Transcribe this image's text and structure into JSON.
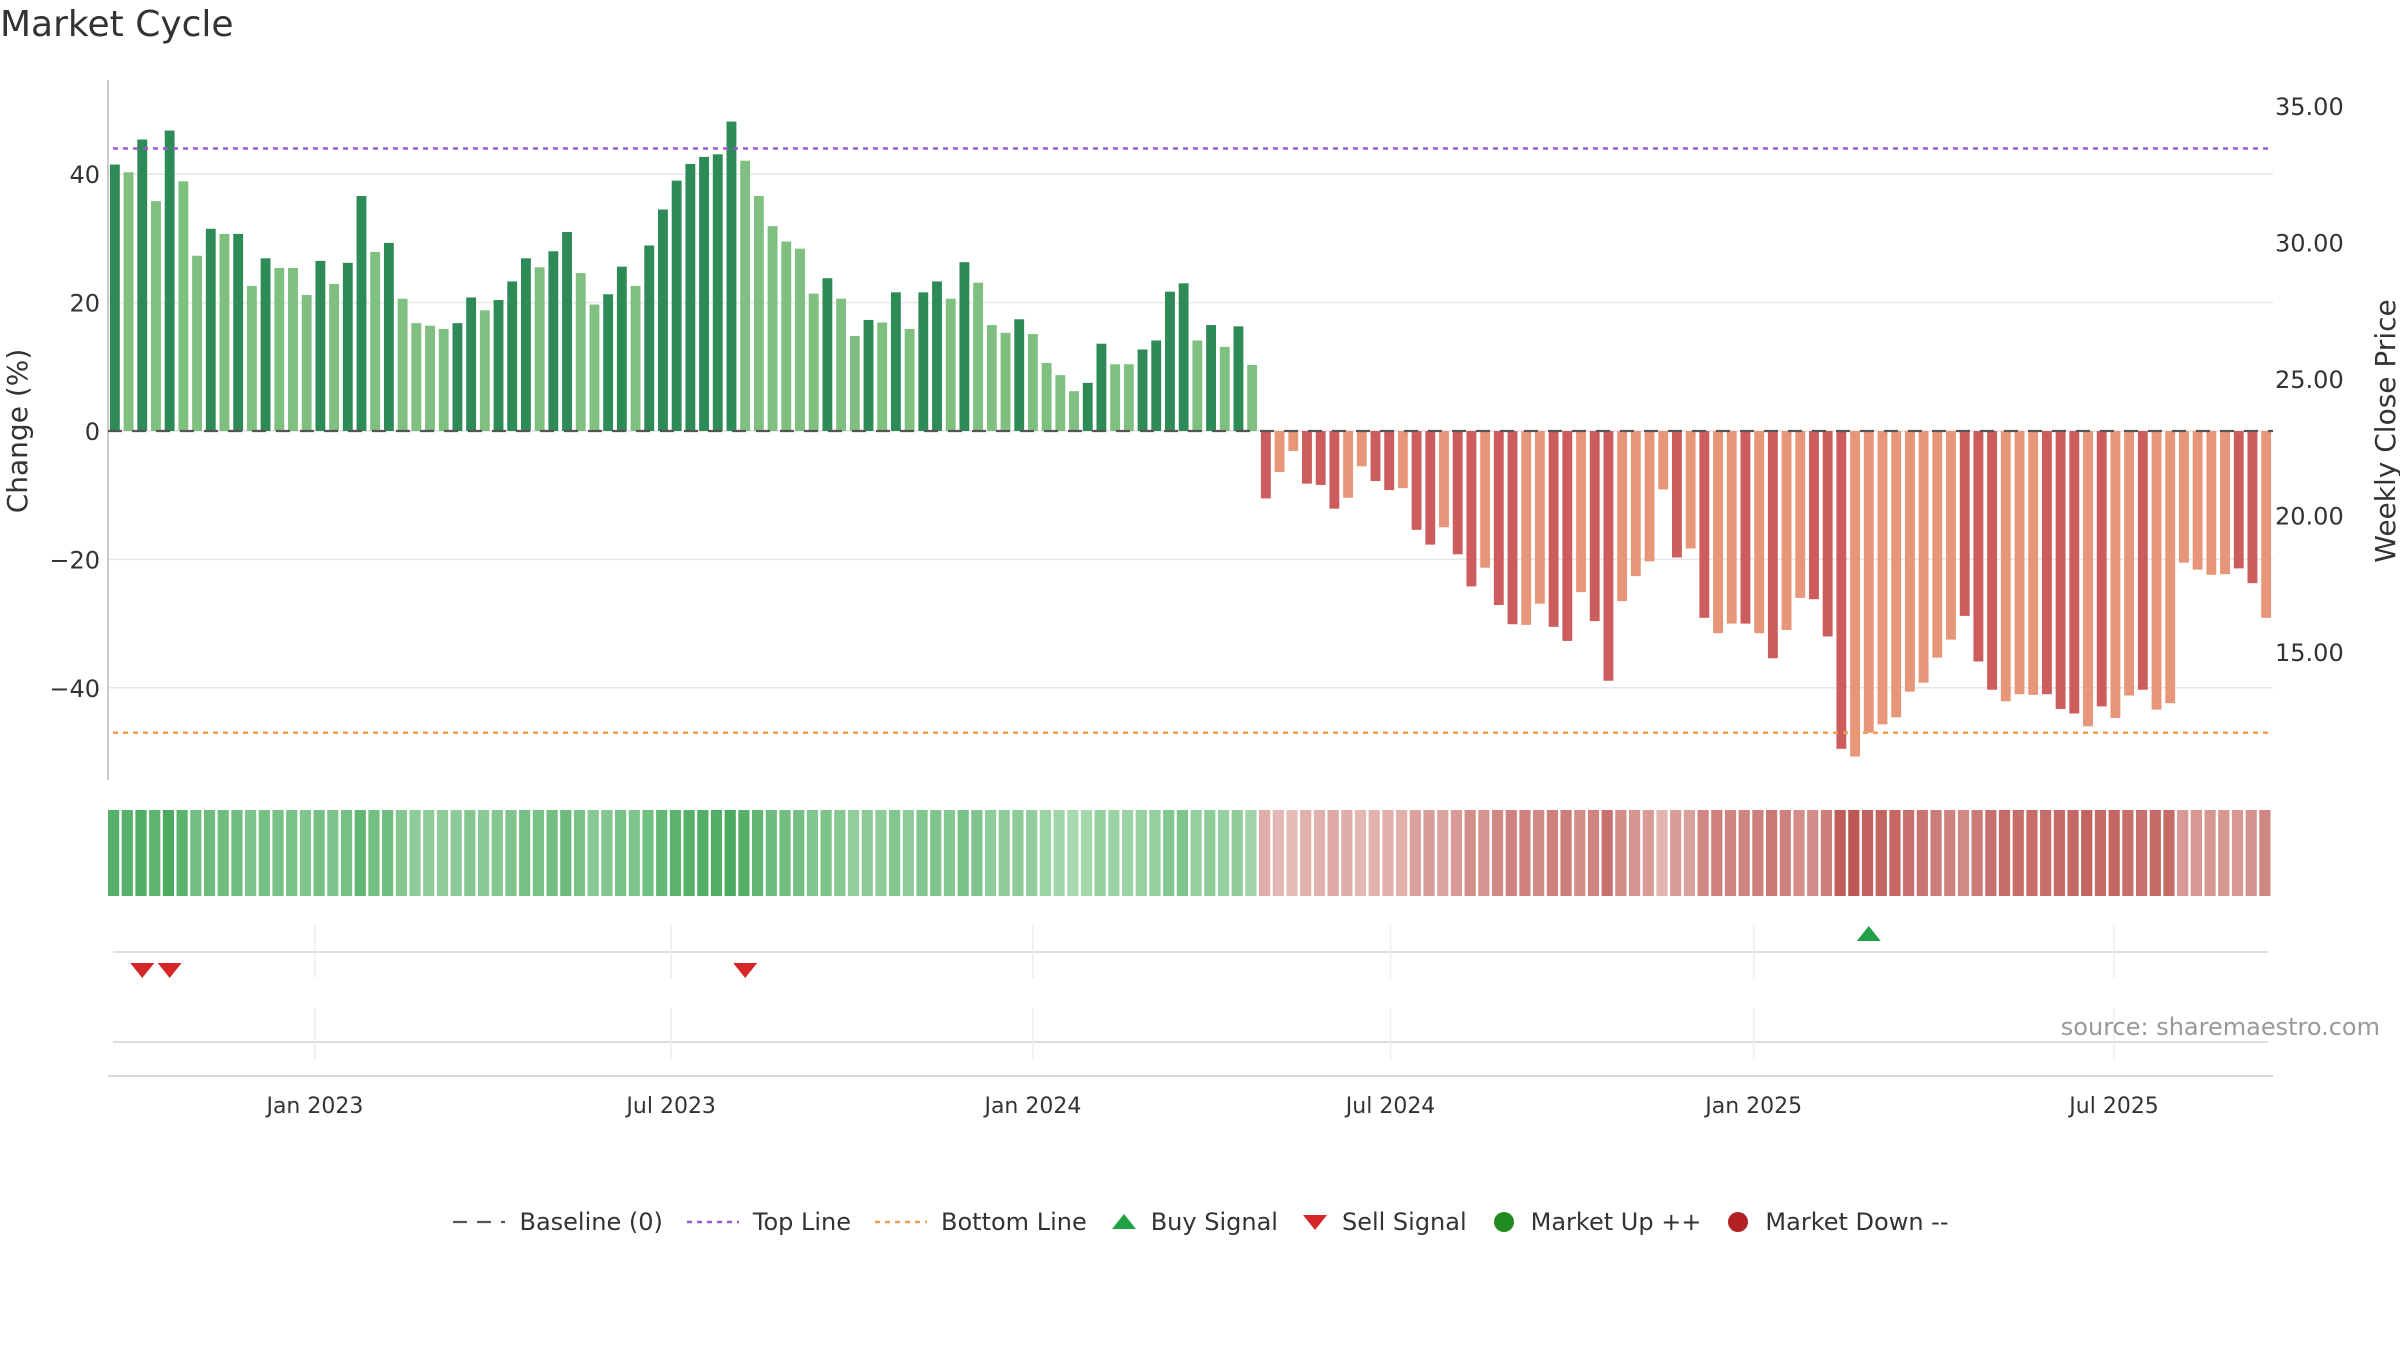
{
  "title": "Market Cycle",
  "source": "source: sharemaestro.com",
  "colors": {
    "up_dark": "#2e8b57",
    "up_light": "#7fbf7f",
    "down_dark": "#cd5c5c",
    "down_light": "#e8967a",
    "top_line": "#9b59d0",
    "bottom_line": "#f0a050",
    "baseline": "#555555",
    "buy": "#22a045",
    "sell": "#d62728",
    "market_up": "#228b22",
    "market_down": "#b22222"
  },
  "legend": [
    {
      "label": "Baseline (0)",
      "symbol": "baseline"
    },
    {
      "label": "Top Line",
      "symbol": "top_line"
    },
    {
      "label": "Bottom Line",
      "symbol": "bottom_line"
    },
    {
      "label": "Buy Signal",
      "symbol": "buy"
    },
    {
      "label": "Sell Signal",
      "symbol": "sell"
    },
    {
      "label": "Market Up ++",
      "symbol": "market_up"
    },
    {
      "label": "Market Down --",
      "symbol": "market_down"
    }
  ],
  "chart_data": {
    "type": "bar",
    "title": "Market Cycle",
    "ylabel": "Change (%)",
    "y2label": "Weekly Close Price",
    "ylim": [
      -55,
      55
    ],
    "y2lim": [
      11.27,
      36.33
    ],
    "yticks": [
      -40,
      -20,
      0,
      20,
      40
    ],
    "yticklabels": [
      "−40",
      "−20",
      "0",
      "20",
      "40"
    ],
    "y2ticks": [
      15,
      20,
      25,
      30,
      35
    ],
    "y2ticklabels": [
      "15.00",
      "20.00",
      "25.00",
      "30.00",
      "35.00"
    ],
    "xticklabels": [
      "Jan 2023",
      "Jul 2023",
      "Jan 2024",
      "Jul 2024",
      "Jan 2025",
      "Jul 2025"
    ],
    "xtick_week_index": [
      14.6,
      40.6,
      67.0,
      93.1,
      119.6,
      145.9
    ],
    "top_line": 44,
    "bottom_line": -47,
    "baseline": 0,
    "values": [
      41.5,
      40.3,
      45.4,
      35.8,
      46.8,
      38.9,
      27.3,
      31.5,
      30.7,
      30.7,
      22.6,
      26.9,
      25.4,
      25.4,
      21.2,
      26.5,
      22.9,
      26.2,
      36.6,
      27.9,
      29.3,
      20.6,
      16.8,
      16.4,
      15.9,
      16.8,
      20.8,
      18.8,
      20.4,
      23.3,
      26.9,
      25.5,
      28.0,
      31.0,
      24.6,
      19.7,
      21.3,
      25.6,
      22.6,
      28.9,
      34.5,
      39.0,
      41.6,
      42.7,
      43.1,
      48.2,
      42.1,
      36.6,
      31.9,
      29.5,
      28.4,
      21.4,
      23.8,
      20.6,
      14.8,
      17.3,
      16.9,
      21.6,
      15.9,
      21.6,
      23.3,
      20.6,
      26.3,
      23.1,
      16.5,
      15.3,
      17.4,
      15.1,
      10.6,
      8.7,
      6.2,
      7.5,
      13.6,
      10.4,
      10.4,
      12.7,
      14.1,
      21.7,
      23.0,
      14.1,
      16.5,
      13.1,
      16.3,
      10.3,
      -10.5,
      -6.4,
      -3.1,
      -8.2,
      -8.4,
      -12.1,
      -10.4,
      -5.5,
      -7.8,
      -9.2,
      -8.9,
      -15.4,
      -17.7,
      -15.0,
      -19.2,
      -24.2,
      -21.3,
      -27.1,
      -30.1,
      -30.2,
      -26.9,
      -30.5,
      -32.7,
      -25.1,
      -29.6,
      -38.9,
      -26.5,
      -22.6,
      -20.3,
      -9.1,
      -19.7,
      -18.3,
      -29.1,
      -31.5,
      -30.0,
      -30.0,
      -31.5,
      -35.4,
      -31.0,
      -26.0,
      -26.2,
      -32.0,
      -49.5,
      -50.7,
      -47.0,
      -45.7,
      -44.6,
      -40.6,
      -39.2,
      -35.3,
      -32.5,
      -28.8,
      -35.9,
      -40.3,
      -42.1,
      -41.0,
      -41.1,
      -41.0,
      -43.3,
      -44.0,
      -46.0,
      -42.9,
      -44.7,
      -41.2,
      -40.3,
      -43.4,
      -42.4,
      -20.5,
      -21.6,
      -22.4,
      -22.3,
      -21.4,
      -23.7,
      -29.1
    ],
    "shade": [
      "d",
      "l",
      "d",
      "l",
      "d",
      "l",
      "l",
      "d",
      "l",
      "d",
      "l",
      "d",
      "l",
      "l",
      "l",
      "d",
      "l",
      "d",
      "d",
      "l",
      "d",
      "l",
      "l",
      "l",
      "l",
      "d",
      "d",
      "l",
      "d",
      "d",
      "d",
      "l",
      "d",
      "d",
      "l",
      "l",
      "d",
      "d",
      "l",
      "d",
      "d",
      "d",
      "d",
      "d",
      "d",
      "d",
      "l",
      "l",
      "l",
      "l",
      "l",
      "l",
      "d",
      "l",
      "l",
      "d",
      "l",
      "d",
      "l",
      "d",
      "d",
      "l",
      "d",
      "l",
      "l",
      "l",
      "d",
      "l",
      "l",
      "l",
      "l",
      "d",
      "d",
      "l",
      "l",
      "d",
      "d",
      "d",
      "d",
      "l",
      "d",
      "l",
      "d",
      "l",
      "d",
      "l",
      "l",
      "d",
      "d",
      "d",
      "l",
      "l",
      "d",
      "d",
      "l",
      "d",
      "d",
      "l",
      "d",
      "d",
      "l",
      "d",
      "d",
      "l",
      "l",
      "d",
      "d",
      "l",
      "d",
      "d",
      "l",
      "l",
      "l",
      "l",
      "d",
      "l",
      "d",
      "l",
      "l",
      "d",
      "l",
      "d",
      "l",
      "l",
      "d",
      "d",
      "d",
      "l",
      "l",
      "l",
      "l",
      "l",
      "l",
      "l",
      "l",
      "d",
      "d",
      "d",
      "l",
      "l",
      "l",
      "d",
      "d",
      "d",
      "l",
      "d",
      "l",
      "l",
      "d",
      "l",
      "l",
      "l",
      "l",
      "l",
      "l",
      "d",
      "d"
    ],
    "sentiment": [
      0.9,
      0.88,
      0.95,
      0.82,
      0.98,
      0.86,
      0.65,
      0.7,
      0.68,
      0.68,
      0.55,
      0.62,
      0.6,
      0.6,
      0.52,
      0.62,
      0.55,
      0.62,
      0.8,
      0.65,
      0.68,
      0.5,
      0.42,
      0.41,
      0.4,
      0.42,
      0.5,
      0.46,
      0.5,
      0.55,
      0.62,
      0.6,
      0.65,
      0.7,
      0.58,
      0.48,
      0.51,
      0.6,
      0.55,
      0.66,
      0.77,
      0.85,
      0.9,
      0.92,
      0.93,
      1.0,
      0.9,
      0.8,
      0.7,
      0.66,
      0.64,
      0.52,
      0.56,
      0.5,
      0.38,
      0.43,
      0.42,
      0.52,
      0.4,
      0.52,
      0.55,
      0.5,
      0.6,
      0.55,
      0.41,
      0.39,
      0.43,
      0.38,
      0.3,
      0.26,
      0.2,
      0.23,
      0.35,
      0.29,
      0.29,
      0.33,
      0.36,
      0.52,
      0.55,
      0.36,
      0.41,
      0.34,
      0.4,
      0.28,
      0.3,
      0.22,
      0.18,
      0.27,
      0.27,
      0.34,
      0.3,
      0.22,
      0.26,
      0.28,
      0.28,
      0.4,
      0.44,
      0.38,
      0.46,
      0.56,
      0.5,
      0.6,
      0.66,
      0.66,
      0.6,
      0.67,
      0.7,
      0.56,
      0.64,
      0.8,
      0.58,
      0.5,
      0.45,
      0.25,
      0.44,
      0.41,
      0.62,
      0.67,
      0.64,
      0.64,
      0.67,
      0.74,
      0.66,
      0.56,
      0.57,
      0.68,
      0.96,
      1.0,
      0.92,
      0.9,
      0.88,
      0.8,
      0.77,
      0.7,
      0.66,
      0.6,
      0.72,
      0.8,
      0.84,
      0.82,
      0.82,
      0.82,
      0.86,
      0.87,
      0.9,
      0.85,
      0.88,
      0.82,
      0.8,
      0.85,
      0.84,
      0.46,
      0.48,
      0.49,
      0.49,
      0.48,
      0.52,
      0.62
    ],
    "sell_signals_week_index": [
      2,
      4,
      46
    ],
    "buy_signals_week_index": [
      128
    ],
    "grid": true
  }
}
